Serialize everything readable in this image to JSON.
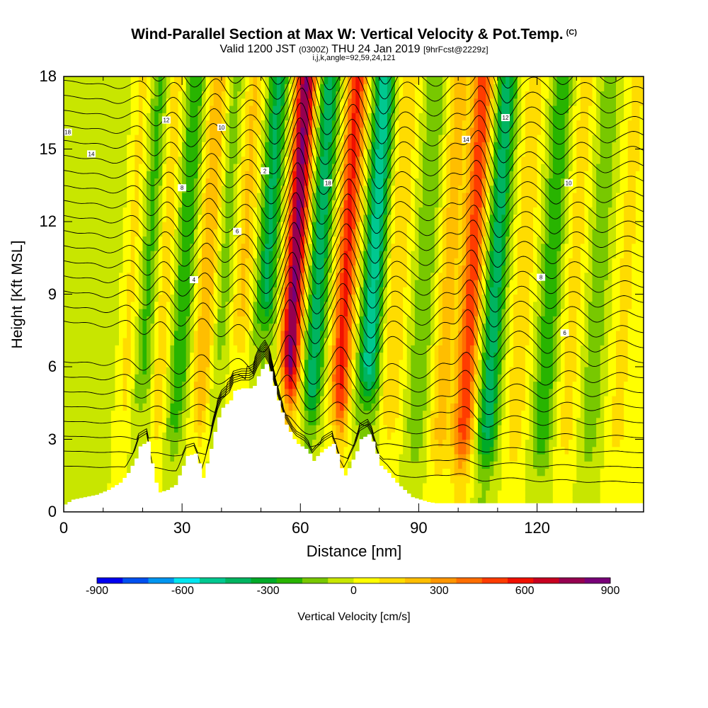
{
  "header": {
    "title": "Wind-Parallel Section at Max W: Vertical Velocity & Pot.Temp.",
    "copyright": "(C)",
    "valid_prefix": "Valid 1200 JST",
    "valid_utc": "(0300Z)",
    "valid_date": "THU 24 Jan 2019",
    "forecast_info": "[9hrFcst@2229z]",
    "section_info": "i,j,k,angle=92,59,24,121"
  },
  "chart_data": {
    "type": "heatmap",
    "title": "Wind-Parallel Section at Max W: Vertical Velocity & Pot.Temp.",
    "xlabel": "Distance [nm]",
    "ylabel": "Height [Kft MSL]",
    "xlim": [
      0,
      147
    ],
    "ylim": [
      0,
      18
    ],
    "xticks": [
      "0",
      "30",
      "60",
      "90",
      "120"
    ],
    "yticks": [
      "0",
      "3",
      "6",
      "9",
      "12",
      "15",
      "18"
    ],
    "colorbar": {
      "label": "Vertical Velocity [cm/s]",
      "ticks": [
        "-900",
        "-600",
        "-300",
        "0",
        "300",
        "600",
        "900"
      ],
      "min": -900,
      "max": 900,
      "colors": [
        "#0000f0",
        "#0050f0",
        "#0096f0",
        "#00e6f0",
        "#00c890",
        "#00b460",
        "#00aa28",
        "#28b400",
        "#78c800",
        "#c8e600",
        "#ffff00",
        "#ffdc00",
        "#ffbe00",
        "#ff9600",
        "#ff6e00",
        "#ff3c00",
        "#f01000",
        "#c80020",
        "#960050",
        "#780078"
      ]
    },
    "terrain_kft": [
      [
        0,
        0.3
      ],
      [
        2,
        0.5
      ],
      [
        5,
        0.6
      ],
      [
        8,
        0.7
      ],
      [
        11,
        0.9
      ],
      [
        14,
        1.2
      ],
      [
        16,
        1.6
      ],
      [
        18,
        2.2
      ],
      [
        19,
        2.7
      ],
      [
        21,
        2.9
      ],
      [
        22,
        2.0
      ],
      [
        23,
        1.2
      ],
      [
        24,
        0.8
      ],
      [
        26,
        0.9
      ],
      [
        28,
        1.1
      ],
      [
        29,
        1.5
      ],
      [
        30,
        1.9
      ],
      [
        31,
        2.3
      ],
      [
        33,
        2.4
      ],
      [
        34,
        2.0
      ],
      [
        35,
        1.4
      ],
      [
        36,
        2.0
      ],
      [
        37,
        2.6
      ],
      [
        38,
        3.3
      ],
      [
        39,
        3.9
      ],
      [
        40,
        4.3
      ],
      [
        42,
        4.6
      ],
      [
        43,
        5.0
      ],
      [
        45,
        5.1
      ],
      [
        47,
        5.1
      ],
      [
        48,
        5.2
      ],
      [
        49,
        5.6
      ],
      [
        50,
        5.9
      ],
      [
        51,
        6.1
      ],
      [
        52,
        5.8
      ],
      [
        53,
        5.2
      ],
      [
        54,
        4.6
      ],
      [
        55,
        4.1
      ],
      [
        56,
        3.6
      ],
      [
        57,
        3.3
      ],
      [
        58,
        3.0
      ],
      [
        59,
        2.8
      ],
      [
        61,
        2.6
      ],
      [
        62,
        2.4
      ],
      [
        63,
        2.1
      ],
      [
        64,
        2.3
      ],
      [
        66,
        2.6
      ],
      [
        68,
        2.8
      ],
      [
        69,
        2.4
      ],
      [
        70,
        1.8
      ],
      [
        71,
        1.5
      ],
      [
        72,
        1.8
      ],
      [
        74,
        2.5
      ],
      [
        75,
        3.0
      ],
      [
        77,
        3.2
      ],
      [
        78,
        2.9
      ],
      [
        79,
        2.4
      ],
      [
        80,
        1.9
      ],
      [
        82,
        1.6
      ],
      [
        84,
        1.2
      ],
      [
        86,
        0.9
      ],
      [
        88,
        0.6
      ],
      [
        90,
        0.5
      ],
      [
        92,
        0.4
      ],
      [
        94,
        0.35
      ],
      [
        100,
        0.35
      ],
      [
        110,
        0.35
      ],
      [
        120,
        0.35
      ],
      [
        130,
        0.35
      ],
      [
        140,
        0.35
      ],
      [
        147,
        0.35
      ]
    ],
    "w_bands": [
      {
        "x": 3,
        "w": -40
      },
      {
        "x": 11,
        "w": -90
      },
      {
        "x": 17,
        "w": 120
      },
      {
        "x": 21,
        "w": -220
      },
      {
        "x": 25,
        "w": 160
      },
      {
        "x": 30,
        "w": -260
      },
      {
        "x": 36,
        "w": 280
      },
      {
        "x": 40,
        "w": -150
      },
      {
        "x": 45,
        "w": 200
      },
      {
        "x": 51,
        "w": -380
      },
      {
        "x": 58,
        "w": 820
      },
      {
        "x": 64,
        "w": -420
      },
      {
        "x": 71,
        "w": 560
      },
      {
        "x": 78,
        "w": -520
      },
      {
        "x": 84,
        "w": 180
      },
      {
        "x": 91,
        "w": -180
      },
      {
        "x": 97,
        "w": 220
      },
      {
        "x": 103,
        "w": 520
      },
      {
        "x": 109,
        "w": -420
      },
      {
        "x": 116,
        "w": 160
      },
      {
        "x": 123,
        "w": -260
      },
      {
        "x": 129,
        "w": 130
      },
      {
        "x": 135,
        "w": -160
      },
      {
        "x": 142,
        "w": 120
      }
    ],
    "theta_contours": {
      "count": 30,
      "label_values": [
        "18",
        "14",
        "12",
        "10",
        "8",
        "6",
        "4",
        "2"
      ]
    }
  }
}
